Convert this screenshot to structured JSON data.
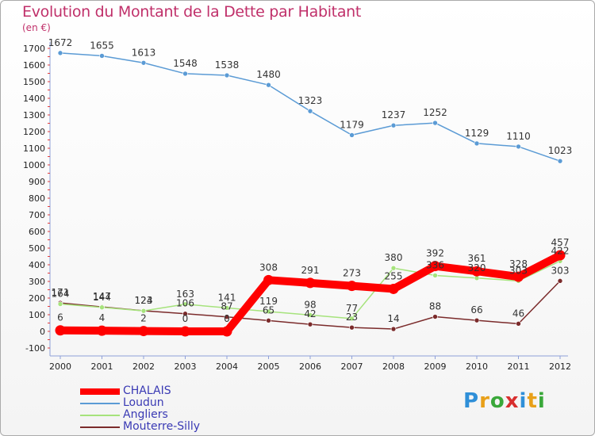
{
  "chart_data": {
    "type": "line",
    "title": "Evolution du Montant de la Dette par Habitant",
    "unit_label": "(en €)",
    "x": [
      "2000",
      "2001",
      "2002",
      "2003",
      "2004",
      "2005",
      "2006",
      "2007",
      "2008",
      "2009",
      "2010",
      "2011",
      "2012"
    ],
    "ylim": [
      -100,
      1700
    ],
    "yticks": [
      -100,
      0,
      100,
      200,
      300,
      400,
      500,
      600,
      700,
      800,
      900,
      1000,
      1100,
      1200,
      1300,
      1400,
      1500,
      1600,
      1700
    ],
    "grid": false,
    "legend_position": "bottom-left",
    "series": [
      {
        "name": "CHALAIS",
        "color": "#ff0000",
        "values": [
          6,
          4,
          2,
          0,
          0,
          308,
          291,
          273,
          255,
          392,
          361,
          328,
          457
        ]
      },
      {
        "name": "Loudun",
        "color": "#5b9bd5",
        "values": [
          1672,
          1655,
          1613,
          1548,
          1538,
          1480,
          1323,
          1179,
          1237,
          1252,
          1129,
          1110,
          1023
        ]
      },
      {
        "name": "Angliers",
        "color": "#a6e37c",
        "values": [
          164,
          144,
          123,
          163,
          141,
          119,
          98,
          77,
          380,
          336,
          320,
          303,
          422
        ]
      },
      {
        "name": "Mouterre-Silly",
        "color": "#7b2b2b",
        "values": [
          171,
          147,
          124,
          106,
          87,
          65,
          42,
          23,
          14,
          88,
          66,
          46,
          303
        ]
      }
    ]
  },
  "logo": {
    "letters": [
      "P",
      "r",
      "o",
      "x",
      "i",
      "t",
      "i"
    ],
    "colors": [
      "#2f8fd8",
      "#e8a019",
      "#3aa83a",
      "#d82f2f",
      "#2f8fd8",
      "#e8a019",
      "#3aa83a"
    ]
  }
}
